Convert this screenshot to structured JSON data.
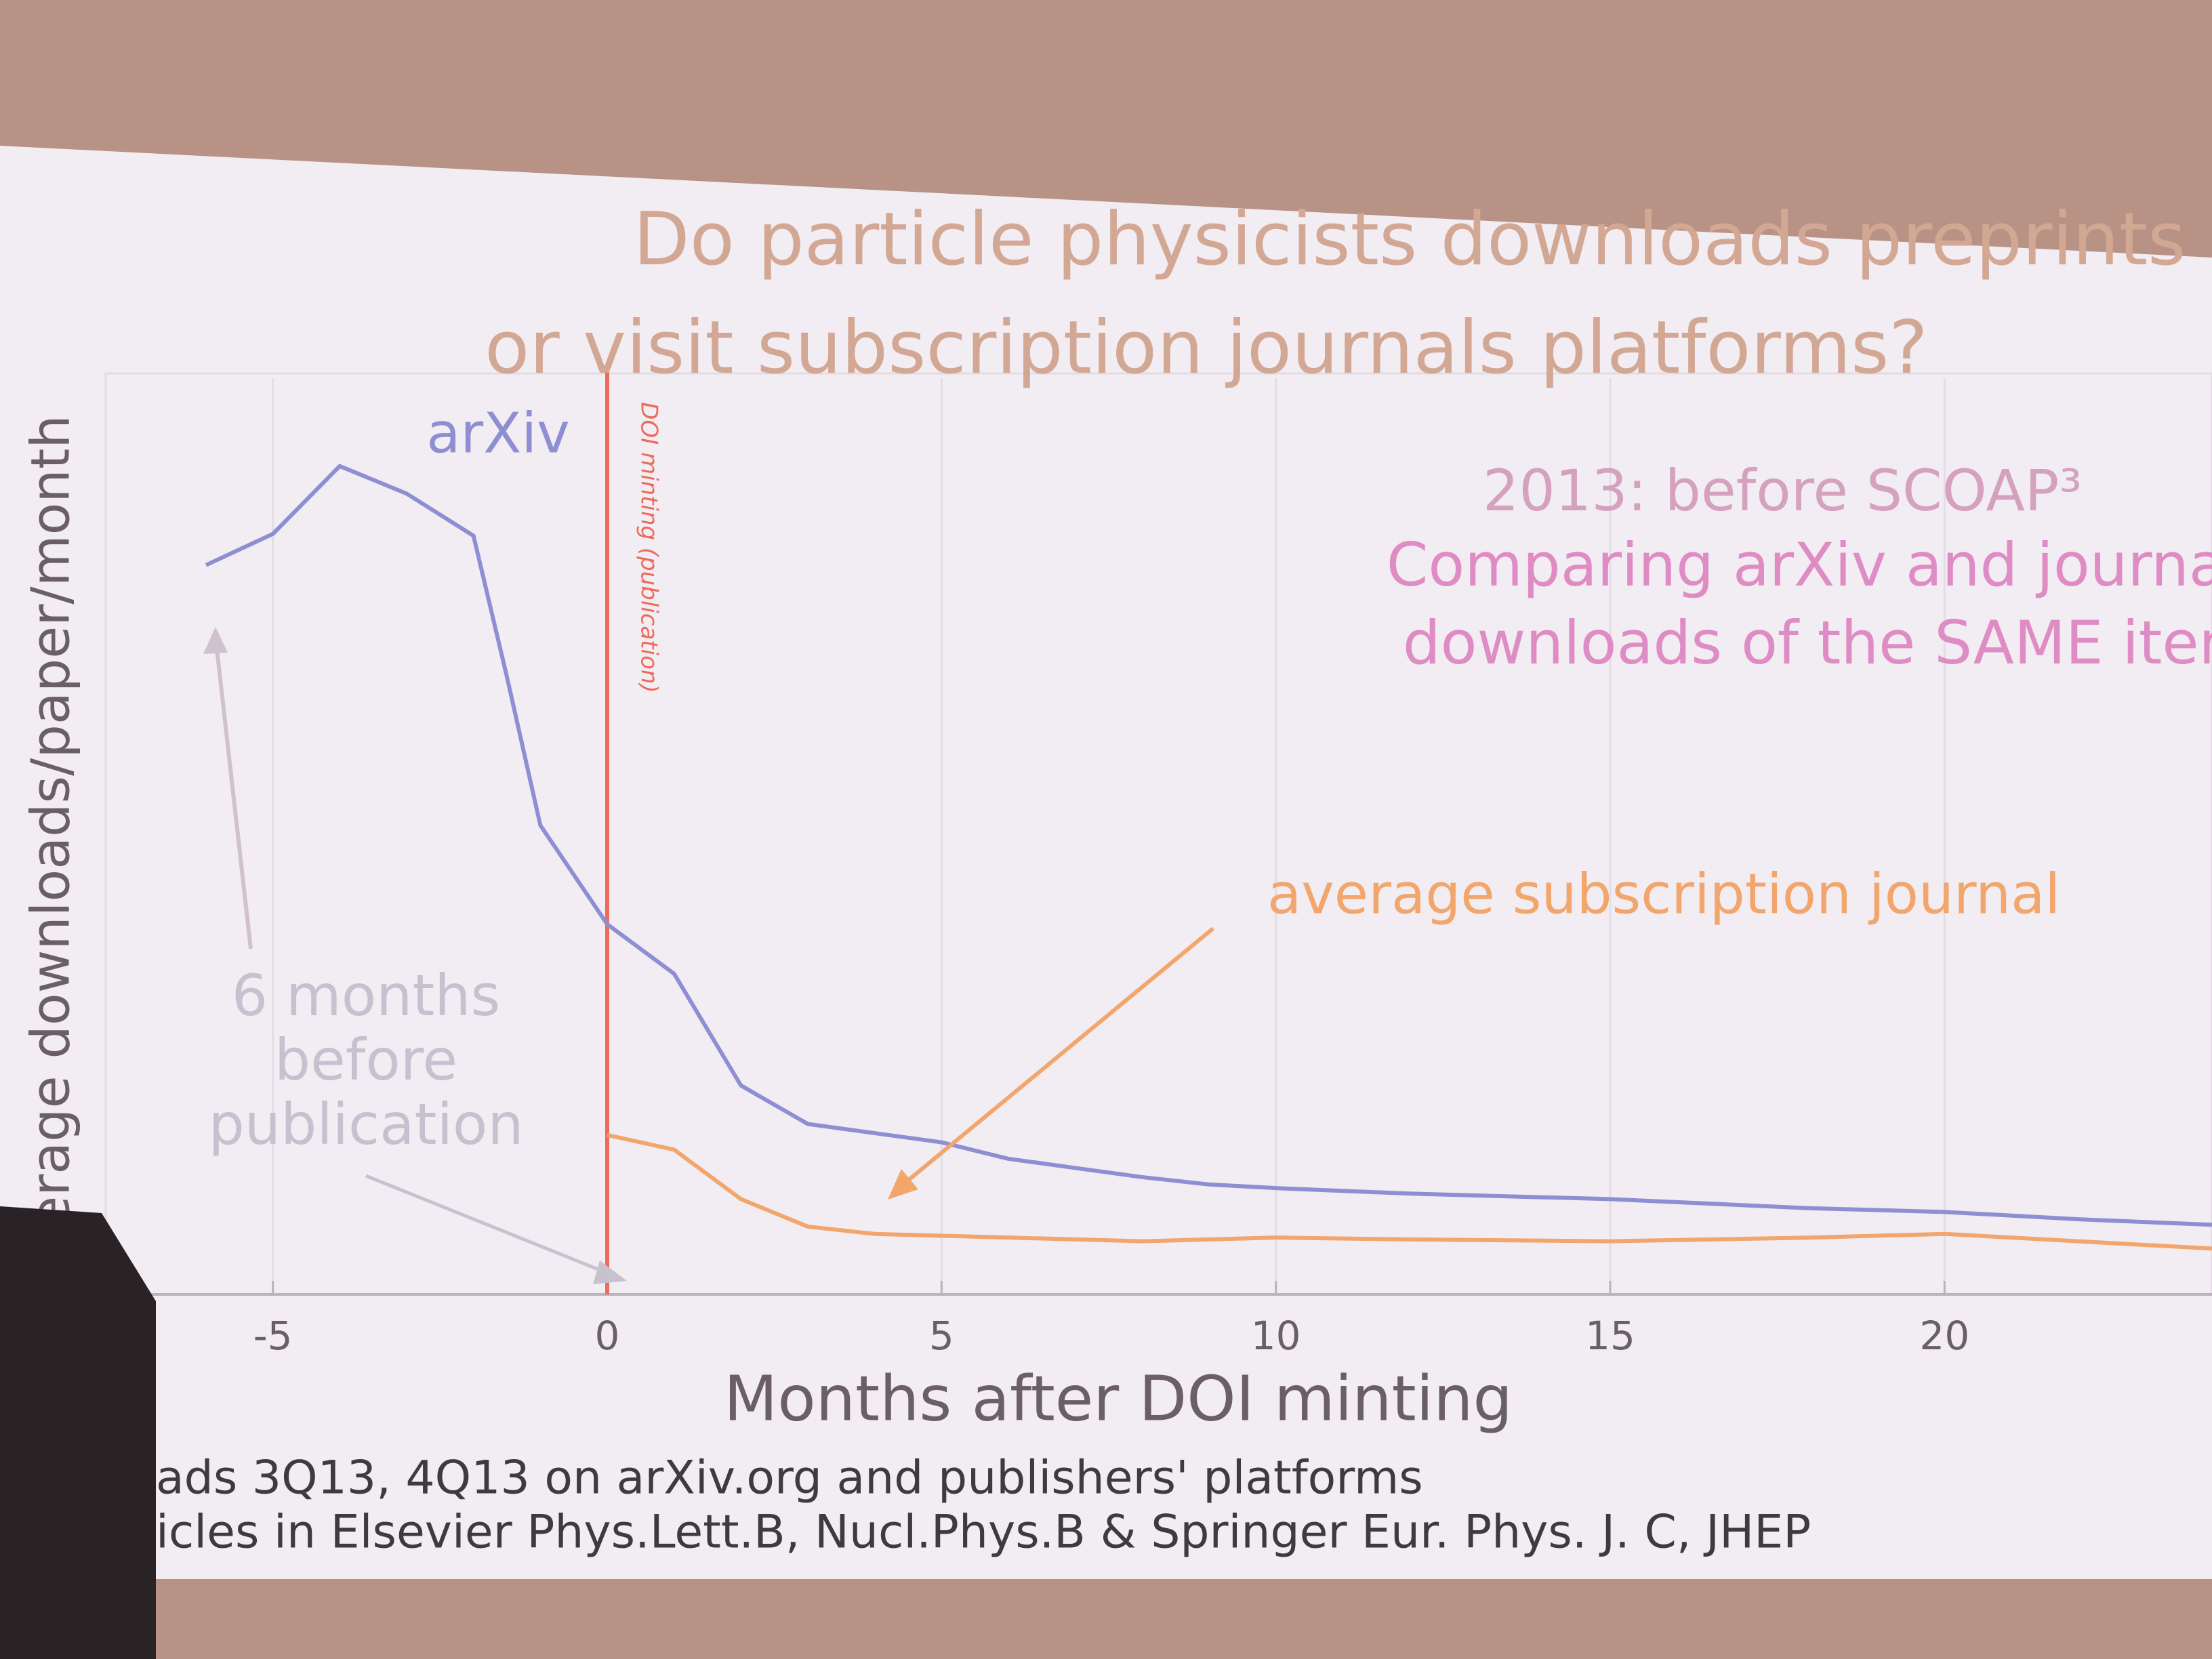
{
  "chart_data": {
    "type": "line",
    "title": [
      "Do particle physicists downloads preprints",
      "or visit subscription journals platforms?"
    ],
    "x_label": "Months after DOI minting",
    "y_label": "Average downloads/paper/month",
    "marker_label": "DOI minting (publication)",
    "notes": [
      "2013: before SCOAP³",
      "Comparing arXiv and journals",
      "downloads of the SAME item"
    ],
    "left_note": [
      "6 months",
      "before",
      "publication"
    ],
    "footnotes": [
      "ads 3Q13, 4Q13 on arXiv.org and publishers' platforms",
      "icles in Elsevier Phys.Lett.B, Nucl.Phys.B & Springer Eur. Phys. J. C, JHEP"
    ],
    "x": [
      -6,
      -5,
      -4,
      -3,
      -2,
      -1.5,
      -1,
      0,
      1,
      2,
      3,
      4,
      5,
      6,
      7,
      8,
      9,
      10,
      12,
      15,
      18,
      20,
      22,
      24
    ],
    "series": [
      {
        "name": "arXiv",
        "color": "#8d8fd2",
        "values": [
          3.98,
          4.15,
          4.52,
          4.37,
          4.14,
          3.37,
          2.56,
          2.02,
          1.75,
          1.14,
          0.93,
          0.88,
          0.83,
          0.74,
          0.69,
          0.64,
          0.6,
          0.58,
          0.55,
          0.52,
          0.47,
          0.45,
          0.41,
          0.38
        ]
      },
      {
        "name": "average subscription journal",
        "color": "#f2a66c",
        "values": [
          null,
          null,
          null,
          null,
          null,
          null,
          null,
          0.87,
          0.79,
          0.52,
          0.37,
          0.33,
          0.32,
          0.31,
          0.3,
          0.29,
          0.3,
          0.31,
          0.3,
          0.29,
          0.31,
          0.33,
          0.29,
          0.25
        ]
      }
    ],
    "xlim": [
      -7.5,
      24
    ],
    "ylim": [
      0,
      5
    ],
    "xticks": [
      -5,
      0,
      5,
      10,
      15,
      20
    ],
    "grid": true
  }
}
